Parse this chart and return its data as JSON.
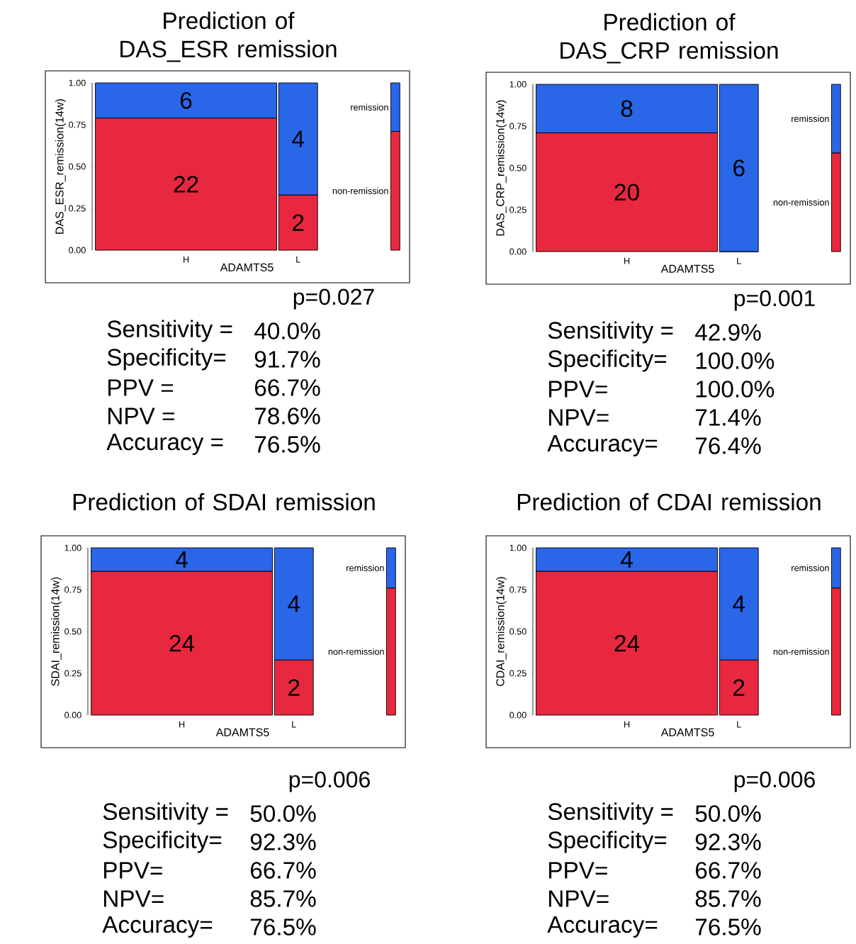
{
  "chart_data": [
    {
      "type": "bar",
      "stacked": true,
      "title": "Prediction of DAS_ESR remission",
      "xlabel": "ADAMTS5",
      "ylabel": "DAS_ESR_remission(14w)",
      "categories": [
        "H",
        "L",
        null
      ],
      "series": [
        {
          "name": "non-remission",
          "color": "#e8283f",
          "values": [
            0.79,
            0.33,
            0.71
          ]
        },
        {
          "name": "remission",
          "color": "#2966e8",
          "values": [
            0.21,
            0.67,
            0.29
          ]
        }
      ],
      "ylim": [
        0,
        1
      ],
      "yticks": [
        {
          "value": 0,
          "label": "0.00"
        },
        {
          "value": 0.25,
          "label": "0.25"
        },
        {
          "value": 0.5,
          "label": "0.50"
        },
        {
          "value": 0.75,
          "label": "0.75"
        },
        {
          "value": 1,
          "label": "1.00"
        }
      ],
      "annotations": [
        {
          "text": "22",
          "x": "H",
          "y": 0.79
        },
        {
          "text": "6",
          "x": "H",
          "y": 1
        },
        {
          "text": "2",
          "x": "L",
          "y": 0.33
        },
        {
          "text": "4",
          "x": "L",
          "y": 1
        },
        "p=0.027",
        "Sensitivity =",
        "40.0%",
        "Specificity=",
        "91.7%",
        "PPV =",
        "66.7%",
        "NPV =",
        "78.6%",
        "Accuracy =",
        "76.5%"
      ]
    },
    {
      "type": "bar",
      "stacked": true,
      "title": "Prediction of DAS_CRP remission",
      "xlabel": "ADAMTS5",
      "ylabel": "DAS_CRP_remission(14w)",
      "categories": [
        "H",
        "L",
        null
      ],
      "series": [
        {
          "name": "non-remission",
          "color": "#e8283f",
          "values": [
            0.71,
            0,
            0.59
          ]
        },
        {
          "name": "remission",
          "color": "#2966e8",
          "values": [
            0.29,
            1,
            0.41
          ]
        }
      ],
      "ylim": [
        0,
        1
      ],
      "yticks": [
        {
          "value": 0,
          "label": "0.00"
        },
        {
          "value": 0.25,
          "label": "0.25"
        },
        {
          "value": 0.5,
          "label": "0.50"
        },
        {
          "value": 0.75,
          "label": "0.75"
        },
        {
          "value": 1,
          "label": "1.00"
        }
      ],
      "annotations": [
        {
          "text": "20",
          "x": "H",
          "y": 0.71
        },
        {
          "text": "8",
          "x": "H",
          "y": 1
        },
        "6",
        "p=0.001",
        "Sensitivity =",
        "42.9%",
        "Specificity=",
        "100.0%",
        "PPV=",
        "100.0%",
        "NPV=",
        "71.4%",
        "Accuracy=",
        "76.4%"
      ]
    },
    {
      "type": "bar",
      "stacked": true,
      "title": "Prediction of SDAI remission",
      "xlabel": "ADAMTS5",
      "ylabel": "SDAI_remission(14w)",
      "categories": [
        "H",
        "L",
        null
      ],
      "series": [
        {
          "name": "non-remission",
          "color": "#e8283f",
          "values": [
            0.86,
            0.33,
            0.76
          ]
        },
        {
          "name": "remission",
          "color": "#2966e8",
          "values": [
            0.14,
            0.67,
            0.24
          ]
        }
      ],
      "ylim": [
        0,
        1
      ],
      "yticks": [
        {
          "value": 0,
          "label": "0.00"
        },
        {
          "value": 0.25,
          "label": "0.25"
        },
        {
          "value": 0.5,
          "label": "0.50"
        },
        {
          "value": 0.75,
          "label": "0.75"
        },
        {
          "value": 1,
          "label": "1.00"
        }
      ],
      "annotations": [
        {
          "text": "24",
          "x": "H",
          "y": 0.86
        },
        {
          "text": "4",
          "x": "H",
          "y": 1
        },
        {
          "text": "2",
          "x": "L",
          "y": 0.33
        },
        {
          "text": "4",
          "x": "L",
          "y": 1
        },
        "p=0.006",
        "Sensitivity =",
        "50.0%",
        "Specificity=",
        "92.3%",
        "PPV=",
        "66.7%",
        "NPV=",
        "85.7%",
        "Accuracy=",
        "76.5%"
      ]
    },
    {
      "type": "bar",
      "stacked": true,
      "title": "Prediction of CDAI remission",
      "xlabel": "ADAMTS5",
      "ylabel": "CDAI_remission(14w)",
      "categories": [
        "H",
        "L",
        null
      ],
      "series": [
        {
          "name": "non-remission",
          "color": "#e8283f",
          "values": [
            0.86,
            0.33,
            0.76
          ]
        },
        {
          "name": "remission",
          "color": "#2966e8",
          "values": [
            0.14,
            0.67,
            0.24
          ]
        }
      ],
      "ylim": [
        0,
        1
      ],
      "yticks": [
        {
          "value": 0,
          "label": "0.00"
        },
        {
          "value": 0.25,
          "label": "0.25"
        },
        {
          "value": 0.5,
          "label": "0.50"
        },
        {
          "value": 0.75,
          "label": "0.75"
        },
        {
          "value": 1,
          "label": "1.00"
        }
      ],
      "annotations": [
        {
          "text": "24",
          "x": "H",
          "y": 0.86
        },
        {
          "text": "4",
          "x": "H",
          "y": 1
        },
        {
          "text": "2",
          "x": "L",
          "y": 0.33
        },
        {
          "text": "4",
          "x": "L",
          "y": 1
        },
        "p=0.006",
        "Sensitivity =",
        "50.0%",
        "Specificity=",
        "92.3%",
        "PPV=",
        "66.7%",
        "NPV=",
        "85.7%",
        "Accuracy=",
        "76.5%"
      ]
    }
  ]
}
